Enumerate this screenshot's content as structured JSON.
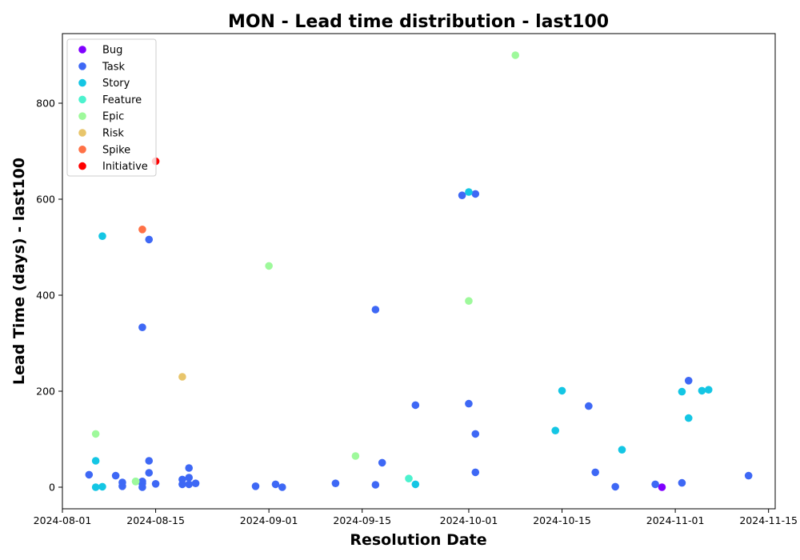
{
  "chart_data": {
    "type": "scatter",
    "title": "MON - Lead time distribution - last100",
    "xlabel": "Resolution Date",
    "ylabel": "Lead Time (days) - last100",
    "x_type": "date",
    "xlim": [
      "2024-08-01",
      "2024-11-16"
    ],
    "ylim": [
      -45,
      945
    ],
    "x_ticks": [
      "2024-08-01",
      "2024-08-15",
      "2024-09-01",
      "2024-09-15",
      "2024-10-01",
      "2024-10-15",
      "2024-11-01",
      "2024-11-15"
    ],
    "y_ticks": [
      0,
      200,
      400,
      600,
      800
    ],
    "legend_position": "upper-left",
    "series": [
      {
        "name": "Bug",
        "color": "#8000ff",
        "points": [
          {
            "x": "2024-10-30",
            "y": 0
          }
        ]
      },
      {
        "name": "Task",
        "color": "#3e68f5",
        "points": [
          {
            "x": "2024-08-05",
            "y": 26
          },
          {
            "x": "2024-08-09",
            "y": 24
          },
          {
            "x": "2024-08-10",
            "y": 10
          },
          {
            "x": "2024-08-10",
            "y": 2
          },
          {
            "x": "2024-08-13",
            "y": 333
          },
          {
            "x": "2024-08-13",
            "y": 8
          },
          {
            "x": "2024-08-13",
            "y": 12
          },
          {
            "x": "2024-08-13",
            "y": 0
          },
          {
            "x": "2024-08-14",
            "y": 516
          },
          {
            "x": "2024-08-14",
            "y": 55
          },
          {
            "x": "2024-08-14",
            "y": 30
          },
          {
            "x": "2024-08-15",
            "y": 7
          },
          {
            "x": "2024-08-19",
            "y": 16
          },
          {
            "x": "2024-08-19",
            "y": 6
          },
          {
            "x": "2024-08-20",
            "y": 40
          },
          {
            "x": "2024-08-20",
            "y": 20
          },
          {
            "x": "2024-08-20",
            "y": 6
          },
          {
            "x": "2024-08-21",
            "y": 8
          },
          {
            "x": "2024-08-30",
            "y": 2
          },
          {
            "x": "2024-09-02",
            "y": 6
          },
          {
            "x": "2024-09-03",
            "y": 0
          },
          {
            "x": "2024-09-11",
            "y": 8
          },
          {
            "x": "2024-09-17",
            "y": 370
          },
          {
            "x": "2024-09-17",
            "y": 5
          },
          {
            "x": "2024-09-18",
            "y": 51
          },
          {
            "x": "2024-09-23",
            "y": 171
          },
          {
            "x": "2024-09-30",
            "y": 608
          },
          {
            "x": "2024-10-01",
            "y": 174
          },
          {
            "x": "2024-10-02",
            "y": 611
          },
          {
            "x": "2024-10-02",
            "y": 111
          },
          {
            "x": "2024-10-02",
            "y": 31
          },
          {
            "x": "2024-10-19",
            "y": 169
          },
          {
            "x": "2024-10-20",
            "y": 31
          },
          {
            "x": "2024-10-23",
            "y": 1
          },
          {
            "x": "2024-10-29",
            "y": 6
          },
          {
            "x": "2024-11-02",
            "y": 9
          },
          {
            "x": "2024-11-03",
            "y": 222
          },
          {
            "x": "2024-11-12",
            "y": 24
          }
        ]
      },
      {
        "name": "Story",
        "color": "#14c6e4",
        "points": [
          {
            "x": "2024-08-06",
            "y": 0
          },
          {
            "x": "2024-08-06",
            "y": 55
          },
          {
            "x": "2024-08-07",
            "y": 1
          },
          {
            "x": "2024-08-07",
            "y": 523
          },
          {
            "x": "2024-09-23",
            "y": 6
          },
          {
            "x": "2024-10-01",
            "y": 615
          },
          {
            "x": "2024-10-14",
            "y": 118
          },
          {
            "x": "2024-10-15",
            "y": 201
          },
          {
            "x": "2024-10-24",
            "y": 78
          },
          {
            "x": "2024-11-02",
            "y": 199
          },
          {
            "x": "2024-11-03",
            "y": 144
          },
          {
            "x": "2024-11-05",
            "y": 201
          },
          {
            "x": "2024-11-06",
            "y": 203
          }
        ]
      },
      {
        "name": "Feature",
        "color": "#4cf2ce",
        "points": [
          {
            "x": "2024-08-12",
            "y": 12
          },
          {
            "x": "2024-09-22",
            "y": 18
          }
        ]
      },
      {
        "name": "Epic",
        "color": "#9ef99b",
        "points": [
          {
            "x": "2024-08-06",
            "y": 111
          },
          {
            "x": "2024-08-12",
            "y": 12
          },
          {
            "x": "2024-09-01",
            "y": 461
          },
          {
            "x": "2024-09-14",
            "y": 65
          },
          {
            "x": "2024-10-01",
            "y": 388
          },
          {
            "x": "2024-10-08",
            "y": 900
          }
        ]
      },
      {
        "name": "Risk",
        "color": "#e8c56b",
        "points": [
          {
            "x": "2024-08-19",
            "y": 230
          }
        ]
      },
      {
        "name": "Spike",
        "color": "#ff7146",
        "points": [
          {
            "x": "2024-08-13",
            "y": 537
          }
        ]
      },
      {
        "name": "Initiative",
        "color": "#ff0000",
        "points": [
          {
            "x": "2024-08-15",
            "y": 679
          }
        ]
      }
    ]
  }
}
